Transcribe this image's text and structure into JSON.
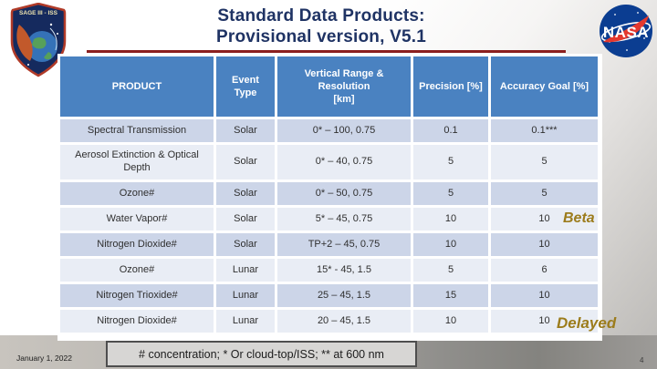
{
  "slide": {
    "title_line1": "Standard Data Products:",
    "title_line2": "Provisional version, V5.1",
    "date": "January 1, 2022",
    "footnote": "# concentration; * Or cloud-top/ISS; ** at 600 nm",
    "page_number": "4",
    "annotations": {
      "beta": "Beta",
      "delayed": "Delayed"
    }
  },
  "logos": {
    "sage_patch_label": "SAGE III - ISS",
    "nasa_label": "NASA"
  },
  "table": {
    "columns": [
      "PRODUCT",
      "Event\nType",
      "Vertical Range &\nResolution\n[km]",
      "Precision [%]",
      "Accuracy Goal [%]"
    ],
    "rows": [
      {
        "cells": [
          "Spectral Transmission",
          "Solar",
          "0* – 100, 0.75",
          "0.1",
          "0.1***"
        ]
      },
      {
        "cells": [
          "Aerosol Extinction & Optical Depth",
          "Solar",
          "0* – 40, 0.75",
          "5",
          "5"
        ]
      },
      {
        "cells": [
          "Ozone#",
          "Solar",
          "0* – 50, 0.75",
          "5",
          "5"
        ]
      },
      {
        "cells": [
          "Water Vapor#",
          "Solar",
          "5* – 45, 0.75",
          "10",
          "10"
        ]
      },
      {
        "cells": [
          "Nitrogen Dioxide#",
          "Solar",
          "TP+2 – 45, 0.75",
          "10",
          "10"
        ]
      },
      {
        "cells": [
          "Ozone#",
          "Lunar",
          "15* - 45, 1.5",
          "5",
          "6"
        ]
      },
      {
        "cells": [
          "Nitrogen Trioxide#",
          "Lunar",
          "25 – 45, 1.5",
          "15",
          "10"
        ]
      },
      {
        "cells": [
          "Nitrogen Dioxide#",
          "Lunar",
          "20 – 45, 1.5",
          "10",
          "10"
        ]
      }
    ]
  },
  "colors": {
    "header_blue": "#4a82c1",
    "band_dark": "#ccd5e8",
    "band_light": "#e9edf5",
    "title_navy": "#1f3364",
    "rule_maroon": "#8b1f1f",
    "annotation_gold": "#9c7c1c",
    "nasa_blue": "#0b3d91",
    "nasa_red": "#e4382e"
  }
}
